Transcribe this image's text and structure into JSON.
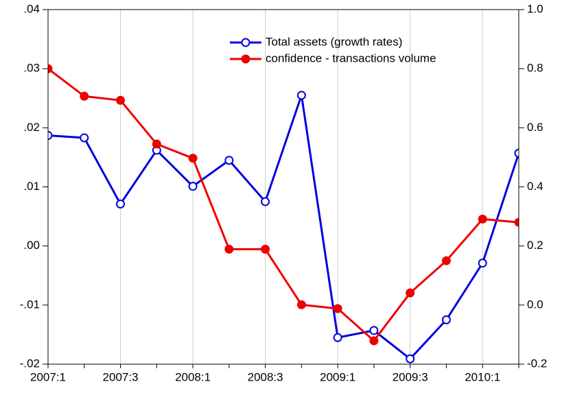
{
  "chart_data": {
    "type": "line",
    "categories": [
      "2007:1",
      null,
      "2007:3",
      null,
      "2008:1",
      null,
      "2008:3",
      null,
      "2009:1",
      null,
      "2009:3",
      null,
      "2010:1",
      null
    ],
    "series": [
      {
        "name": "Total assets (growth rates)",
        "color": "#0000dd",
        "marker": "hollow",
        "axis": "y",
        "values": [
          0.0187,
          0.0183,
          0.0071,
          0.0162,
          0.0101,
          0.0145,
          0.0075,
          0.0255,
          -0.0155,
          -0.0143,
          -0.0191,
          -0.0125,
          -0.0029,
          0.0157
        ]
      },
      {
        "name": "confidence - transactions volume",
        "color": "#ee0000",
        "marker": "filled",
        "axis": "y2",
        "values": [
          0.8,
          0.707,
          0.693,
          0.545,
          0.497,
          0.189,
          0.189,
          0.001,
          -0.012,
          -0.121,
          0.041,
          0.15,
          0.291,
          0.28
        ]
      }
    ],
    "ylim": [
      -0.02,
      0.04
    ],
    "yticks": [
      {
        "value": -0.02,
        "label": "-.02"
      },
      {
        "value": -0.01,
        "label": "-.01"
      },
      {
        "value": 0,
        "label": ".00"
      },
      {
        "value": 0.01,
        "label": ".01"
      },
      {
        "value": 0.02,
        "label": ".02"
      },
      {
        "value": 0.03,
        "label": ".03"
      },
      {
        "value": 0.04,
        "label": ".04"
      }
    ],
    "y2lim": [
      -0.2,
      1.0
    ],
    "y2ticks": [
      -0.2,
      {
        "value": 0,
        "label": "0.0"
      },
      0.2,
      0.4,
      0.6,
      0.8,
      {
        "value": 1,
        "label": "1.0"
      }
    ],
    "grid": true,
    "legend": "top"
  }
}
